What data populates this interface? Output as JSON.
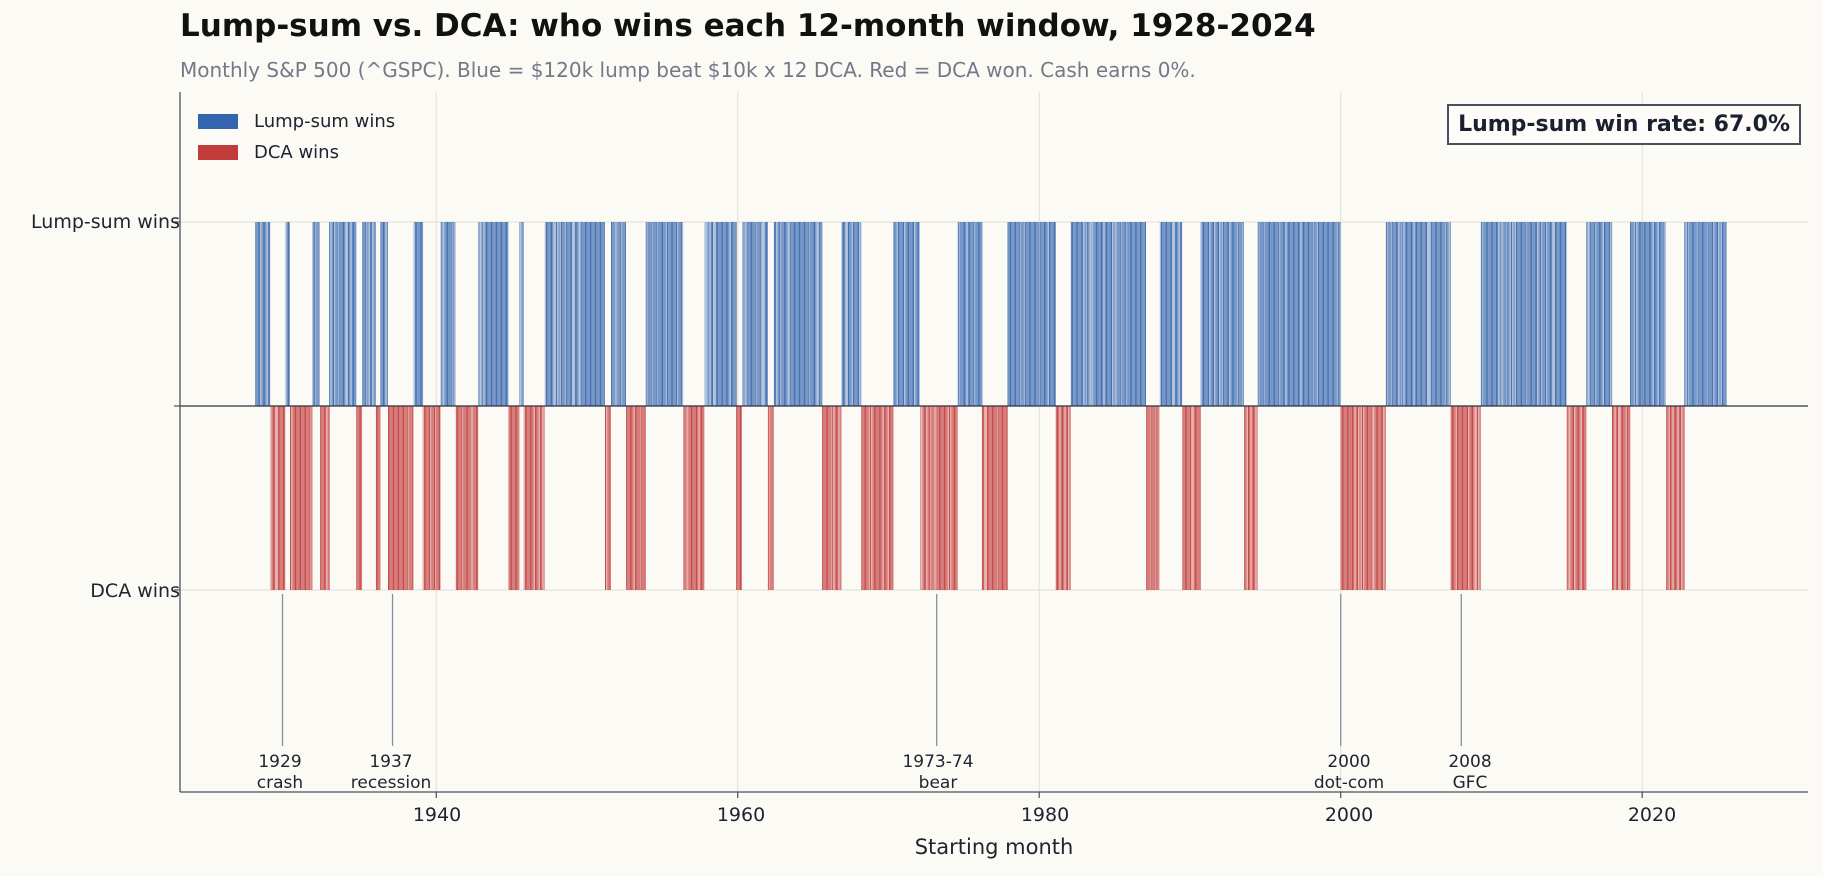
{
  "title": "Lump-sum vs. DCA: who wins each 12-month window, 1928-2024",
  "subtitle": "Monthly S&P 500 (^GSPC). Blue = $120k lump beat $10k x 12 DCA. Red = DCA won. Cash earns 0%.",
  "legend": [
    {
      "label": "Lump-sum wins",
      "color": "#3465ae"
    },
    {
      "label": "DCA wins",
      "color": "#c23c3c"
    }
  ],
  "win_rate_label": "Lump-sum win rate: 67.0%",
  "y_ticks": [
    "Lump-sum wins",
    "DCA wins"
  ],
  "x_ticks": [
    "1940",
    "1960",
    "1980",
    "2000",
    "2020"
  ],
  "xlabel": "Starting month",
  "events": [
    {
      "year": 1929.8,
      "line1": "1929",
      "line2": "crash"
    },
    {
      "year": 1937.1,
      "line1": "1937",
      "line2": "recession"
    },
    {
      "year": 1973.2,
      "line1": "1973-74",
      "line2": "bear"
    },
    {
      "year": 2000.0,
      "line1": "2000",
      "line2": "dot-com"
    },
    {
      "year": 2008.0,
      "line1": "2008",
      "line2": "GFC"
    }
  ],
  "chart_data": {
    "type": "bar",
    "title": "Lump-sum vs. DCA: who wins each 12-month window, 1928-2024",
    "xlabel": "Starting month",
    "ylabel": "",
    "xlim": [
      1923,
      2031
    ],
    "ylim": [
      -1.1,
      1.1
    ],
    "x_ticks": [
      1940,
      1960,
      1980,
      2000,
      2020
    ],
    "y_ticks": [
      "Lump-sum wins",
      "DCA wins"
    ],
    "grid": true,
    "legend_placement": "top-left",
    "series": [
      {
        "name": "Lump-sum wins",
        "value": 1,
        "color": "#3465ae"
      },
      {
        "name": "DCA wins",
        "value": -1,
        "color": "#c23c3c"
      }
    ],
    "lump_sum_win_rate": 67.0,
    "outcome_runs": [
      {
        "start": 1928.0,
        "end": 1929.0,
        "winner": "lump"
      },
      {
        "start": 1929.0,
        "end": 1930.0,
        "winner": "dca"
      },
      {
        "start": 1930.0,
        "end": 1930.3,
        "winner": "lump"
      },
      {
        "start": 1930.3,
        "end": 1931.8,
        "winner": "dca"
      },
      {
        "start": 1931.8,
        "end": 1932.3,
        "winner": "lump"
      },
      {
        "start": 1932.3,
        "end": 1932.9,
        "winner": "dca"
      },
      {
        "start": 1932.9,
        "end": 1934.7,
        "winner": "lump"
      },
      {
        "start": 1934.7,
        "end": 1935.1,
        "winner": "dca"
      },
      {
        "start": 1935.1,
        "end": 1936.0,
        "winner": "lump"
      },
      {
        "start": 1936.0,
        "end": 1936.3,
        "winner": "dca"
      },
      {
        "start": 1936.3,
        "end": 1936.8,
        "winner": "lump"
      },
      {
        "start": 1936.8,
        "end": 1938.5,
        "winner": "dca"
      },
      {
        "start": 1938.5,
        "end": 1939.1,
        "winner": "lump"
      },
      {
        "start": 1939.1,
        "end": 1940.3,
        "winner": "dca"
      },
      {
        "start": 1940.3,
        "end": 1941.3,
        "winner": "lump"
      },
      {
        "start": 1941.3,
        "end": 1942.8,
        "winner": "dca"
      },
      {
        "start": 1942.8,
        "end": 1944.8,
        "winner": "lump"
      },
      {
        "start": 1944.8,
        "end": 1945.5,
        "winner": "dca"
      },
      {
        "start": 1945.5,
        "end": 1945.8,
        "winner": "lump"
      },
      {
        "start": 1945.8,
        "end": 1947.2,
        "winner": "dca"
      },
      {
        "start": 1947.2,
        "end": 1951.2,
        "winner": "lump"
      },
      {
        "start": 1951.2,
        "end": 1951.6,
        "winner": "dca"
      },
      {
        "start": 1951.6,
        "end": 1952.6,
        "winner": "lump"
      },
      {
        "start": 1952.6,
        "end": 1953.9,
        "winner": "dca"
      },
      {
        "start": 1953.9,
        "end": 1956.4,
        "winner": "lump"
      },
      {
        "start": 1956.4,
        "end": 1957.8,
        "winner": "dca"
      },
      {
        "start": 1957.8,
        "end": 1959.9,
        "winner": "lump"
      },
      {
        "start": 1959.9,
        "end": 1960.3,
        "winner": "dca"
      },
      {
        "start": 1960.3,
        "end": 1962.0,
        "winner": "lump"
      },
      {
        "start": 1962.0,
        "end": 1962.4,
        "winner": "dca"
      },
      {
        "start": 1962.4,
        "end": 1965.6,
        "winner": "lump"
      },
      {
        "start": 1965.6,
        "end": 1966.9,
        "winner": "dca"
      },
      {
        "start": 1966.9,
        "end": 1968.2,
        "winner": "lump"
      },
      {
        "start": 1968.2,
        "end": 1970.3,
        "winner": "dca"
      },
      {
        "start": 1970.3,
        "end": 1972.1,
        "winner": "lump"
      },
      {
        "start": 1972.1,
        "end": 1974.6,
        "winner": "dca"
      },
      {
        "start": 1974.6,
        "end": 1976.2,
        "winner": "lump"
      },
      {
        "start": 1976.2,
        "end": 1977.9,
        "winner": "dca"
      },
      {
        "start": 1977.9,
        "end": 1981.1,
        "winner": "lump"
      },
      {
        "start": 1981.1,
        "end": 1982.1,
        "winner": "dca"
      },
      {
        "start": 1982.1,
        "end": 1987.1,
        "winner": "lump"
      },
      {
        "start": 1987.1,
        "end": 1988.0,
        "winner": "dca"
      },
      {
        "start": 1988.0,
        "end": 1989.5,
        "winner": "lump"
      },
      {
        "start": 1989.5,
        "end": 1990.7,
        "winner": "dca"
      },
      {
        "start": 1990.7,
        "end": 1993.6,
        "winner": "lump"
      },
      {
        "start": 1993.6,
        "end": 1994.5,
        "winner": "dca"
      },
      {
        "start": 1994.5,
        "end": 2000.0,
        "winner": "lump"
      },
      {
        "start": 2000.0,
        "end": 2003.0,
        "winner": "dca"
      },
      {
        "start": 2003.0,
        "end": 2007.3,
        "winner": "lump"
      },
      {
        "start": 2007.3,
        "end": 2009.3,
        "winner": "dca"
      },
      {
        "start": 2009.3,
        "end": 2015.0,
        "winner": "lump"
      },
      {
        "start": 2015.0,
        "end": 2016.3,
        "winner": "dca"
      },
      {
        "start": 2016.3,
        "end": 2018.0,
        "winner": "lump"
      },
      {
        "start": 2018.0,
        "end": 2019.2,
        "winner": "dca"
      },
      {
        "start": 2019.2,
        "end": 2021.6,
        "winner": "lump"
      },
      {
        "start": 2021.6,
        "end": 2022.8,
        "winner": "dca"
      },
      {
        "start": 2022.8,
        "end": 2025.6,
        "winner": "lump"
      }
    ]
  }
}
